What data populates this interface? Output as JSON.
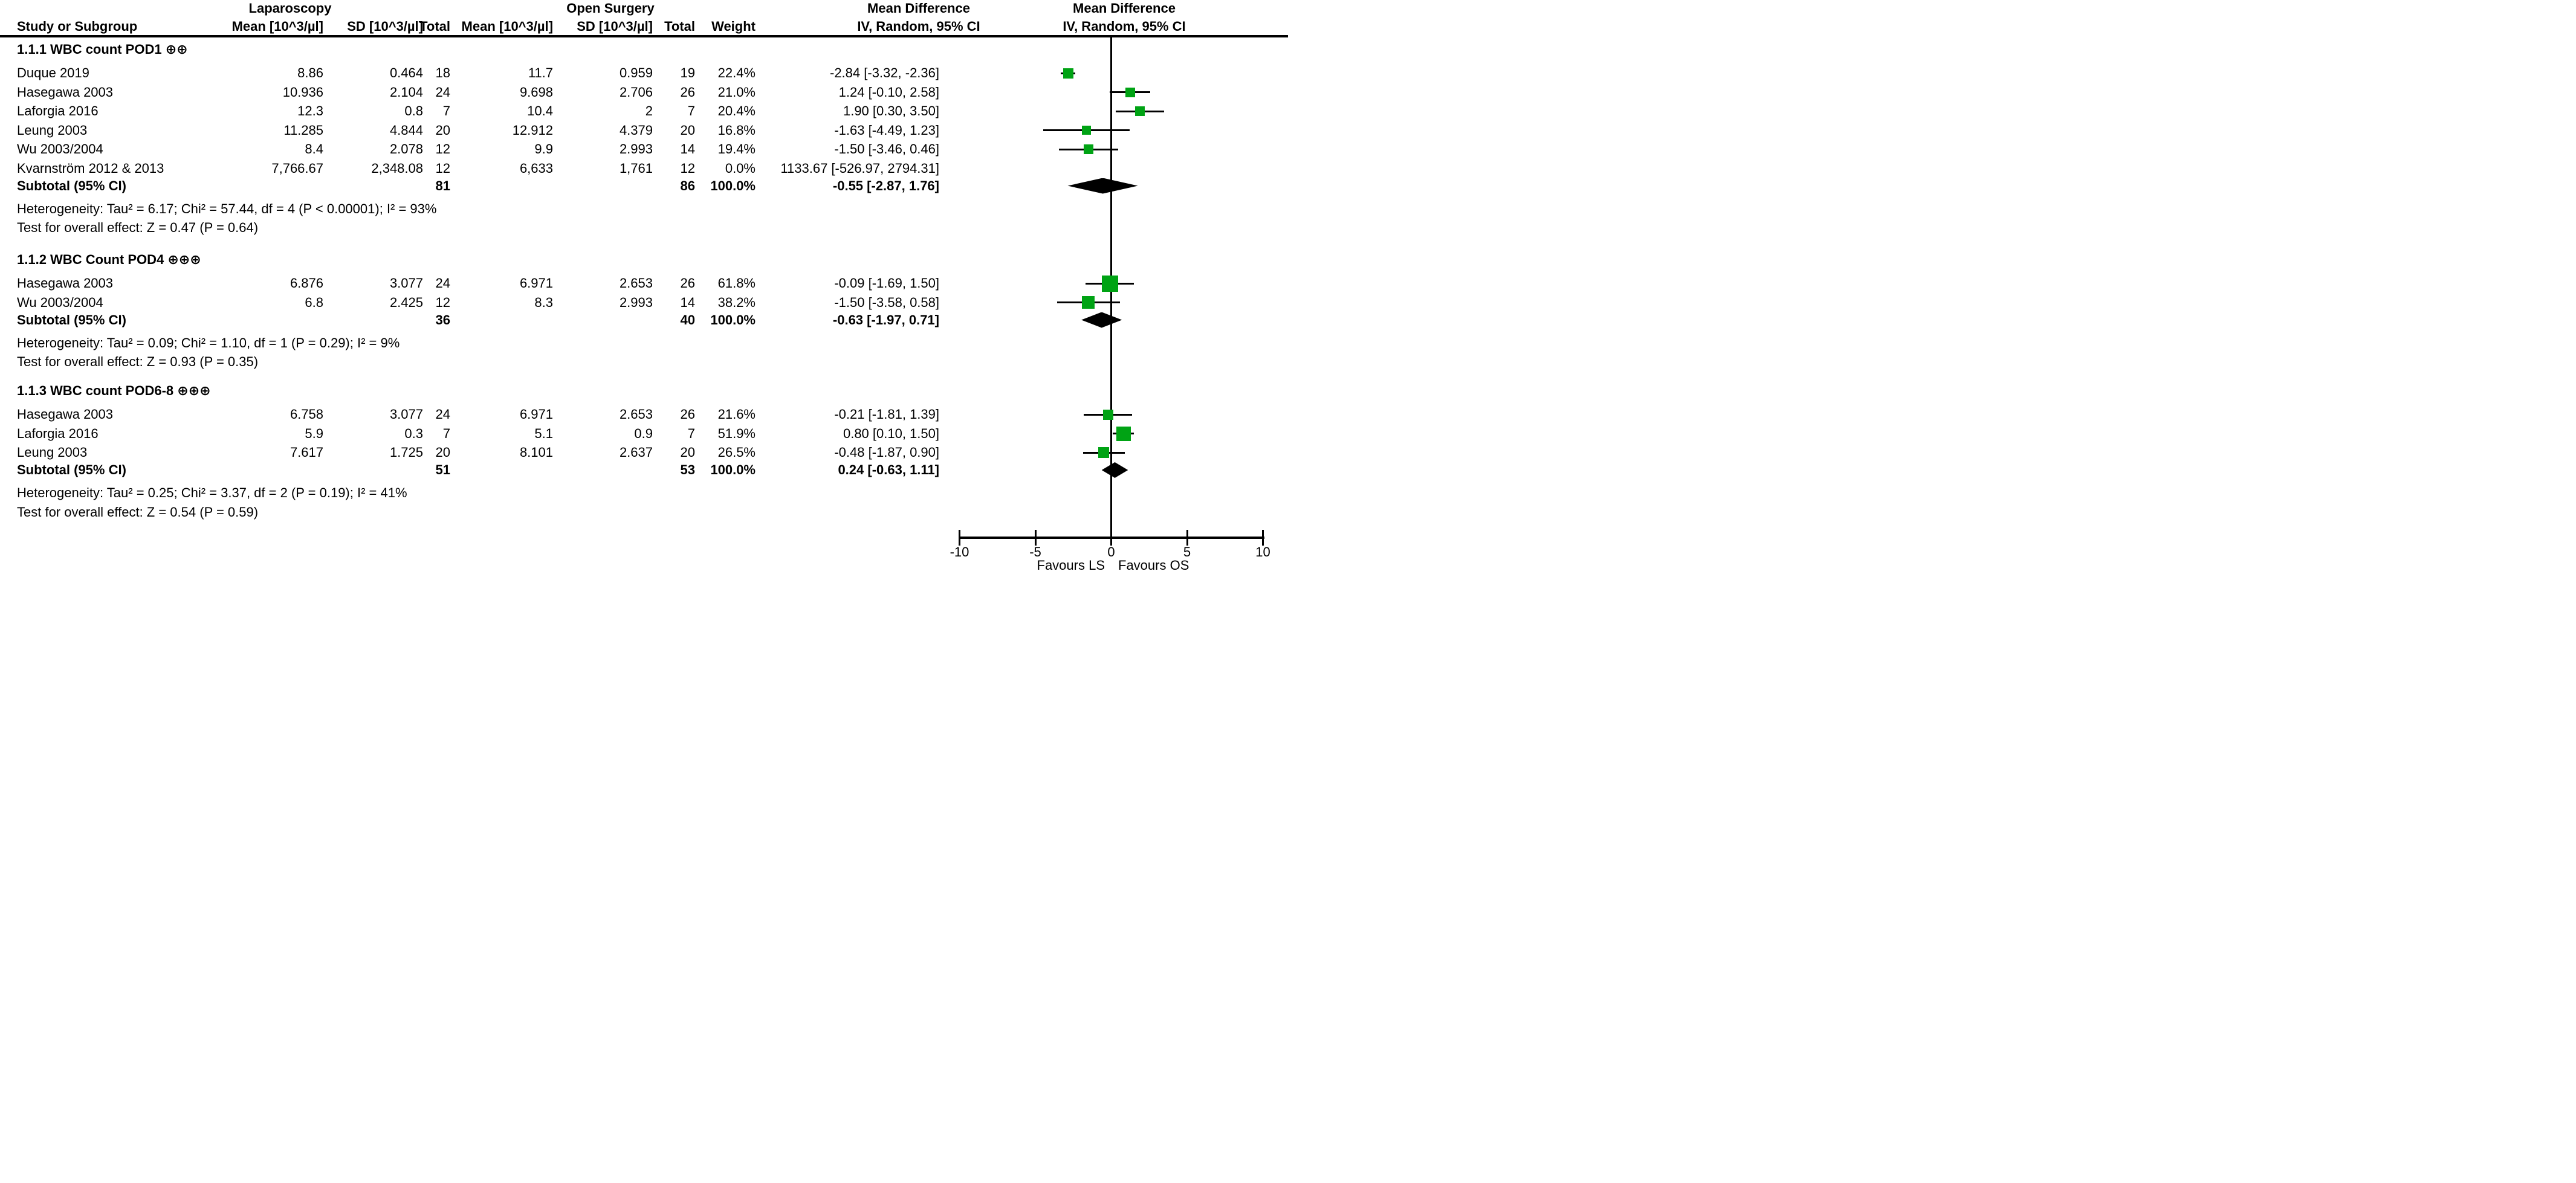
{
  "chart_data": {
    "type": "forest",
    "effect_measure": "Mean Difference",
    "model": "IV, Random, 95% CI",
    "groups": {
      "ls": "Laparoscopy",
      "os": "Open Surgery",
      "md": "Mean Difference",
      "md_graph": "Mean Difference"
    },
    "columns": {
      "study": "Study or Subgroup",
      "ls_mean": "Mean [10^3/µl]",
      "ls_sd": "SD [10^3/µl]",
      "ls_total": "Total",
      "os_mean": "Mean [10^3/µl]",
      "os_sd": "SD [10^3/µl]",
      "os_total": "Total",
      "weight": "Weight",
      "md": "IV, Random, 95% CI",
      "md_graph": "IV, Random, 95% CI"
    },
    "sections": [
      {
        "title": "1.1.1 WBC count POD1 ⊕⊕",
        "rows": [
          {
            "study": "Duque 2019",
            "ls_mean": "8.86",
            "ls_sd": "0.464",
            "ls_total": "18",
            "os_mean": "11.7",
            "os_sd": "0.959",
            "os_total": "19",
            "weight": "22.4%",
            "md_text": "-2.84 [-3.32, -2.36]",
            "est": -2.84,
            "lo": -3.32,
            "hi": -2.36,
            "weight_pct": 22.4,
            "plotted": true
          },
          {
            "study": "Hasegawa 2003",
            "ls_mean": "10.936",
            "ls_sd": "2.104",
            "ls_total": "24",
            "os_mean": "9.698",
            "os_sd": "2.706",
            "os_total": "26",
            "weight": "21.0%",
            "md_text": "1.24 [-0.10, 2.58]",
            "est": 1.24,
            "lo": -0.1,
            "hi": 2.58,
            "weight_pct": 21.0,
            "plotted": true
          },
          {
            "study": "Laforgia 2016",
            "ls_mean": "12.3",
            "ls_sd": "0.8",
            "ls_total": "7",
            "os_mean": "10.4",
            "os_sd": "2",
            "os_total": "7",
            "weight": "20.4%",
            "md_text": "1.90 [0.30, 3.50]",
            "est": 1.9,
            "lo": 0.3,
            "hi": 3.5,
            "weight_pct": 20.4,
            "plotted": true
          },
          {
            "study": "Leung 2003",
            "ls_mean": "11.285",
            "ls_sd": "4.844",
            "ls_total": "20",
            "os_mean": "12.912",
            "os_sd": "4.379",
            "os_total": "20",
            "weight": "16.8%",
            "md_text": "-1.63 [-4.49, 1.23]",
            "est": -1.63,
            "lo": -4.49,
            "hi": 1.23,
            "weight_pct": 16.8,
            "plotted": true
          },
          {
            "study": "Wu 2003/2004",
            "ls_mean": "8.4",
            "ls_sd": "2.078",
            "ls_total": "12",
            "os_mean": "9.9",
            "os_sd": "2.993",
            "os_total": "14",
            "weight": "19.4%",
            "md_text": "-1.50 [-3.46, 0.46]",
            "est": -1.5,
            "lo": -3.46,
            "hi": 0.46,
            "weight_pct": 19.4,
            "plotted": true
          },
          {
            "study": "Kvarnström 2012 & 2013",
            "ls_mean": "7,766.67",
            "ls_sd": "2,348.08",
            "ls_total": "12",
            "os_mean": "6,633",
            "os_sd": "1,761",
            "os_total": "12",
            "weight": "0.0%",
            "md_text": "1133.67 [-526.97, 2794.31]",
            "est": 1133.67,
            "lo": -526.97,
            "hi": 2794.31,
            "weight_pct": 0.0,
            "plotted": false
          }
        ],
        "subtotal": {
          "label": "Subtotal (95% CI)",
          "ls_total": "81",
          "os_total": "86",
          "weight": "100.0%",
          "md_text": "-0.55 [-2.87, 1.76]",
          "est": -0.55,
          "lo": -2.87,
          "hi": 1.76
        },
        "heterogeneity": "Heterogeneity: Tau² = 6.17; Chi² = 57.44, df = 4 (P < 0.00001); I² = 93%",
        "overall_effect": "Test for overall effect: Z = 0.47 (P = 0.64)"
      },
      {
        "title": "1.1.2 WBC Count POD4 ⊕⊕⊕",
        "rows": [
          {
            "study": "Hasegawa 2003",
            "ls_mean": "6.876",
            "ls_sd": "3.077",
            "ls_total": "24",
            "os_mean": "6.971",
            "os_sd": "2.653",
            "os_total": "26",
            "weight": "61.8%",
            "md_text": "-0.09 [-1.69, 1.50]",
            "est": -0.09,
            "lo": -1.69,
            "hi": 1.5,
            "weight_pct": 61.8,
            "plotted": true
          },
          {
            "study": "Wu 2003/2004",
            "ls_mean": "6.8",
            "ls_sd": "2.425",
            "ls_total": "12",
            "os_mean": "8.3",
            "os_sd": "2.993",
            "os_total": "14",
            "weight": "38.2%",
            "md_text": "-1.50 [-3.58, 0.58]",
            "est": -1.5,
            "lo": -3.58,
            "hi": 0.58,
            "weight_pct": 38.2,
            "plotted": true
          }
        ],
        "subtotal": {
          "label": "Subtotal (95% CI)",
          "ls_total": "36",
          "os_total": "40",
          "weight": "100.0%",
          "md_text": "-0.63 [-1.97, 0.71]",
          "est": -0.63,
          "lo": -1.97,
          "hi": 0.71
        },
        "heterogeneity": "Heterogeneity: Tau² = 0.09; Chi² = 1.10, df = 1 (P = 0.29); I² = 9%",
        "overall_effect": "Test for overall effect: Z = 0.93 (P = 0.35)"
      },
      {
        "title": "1.1.3 WBC count POD6-8 ⊕⊕⊕",
        "rows": [
          {
            "study": "Hasegawa 2003",
            "ls_mean": "6.758",
            "ls_sd": "3.077",
            "ls_total": "24",
            "os_mean": "6.971",
            "os_sd": "2.653",
            "os_total": "26",
            "weight": "21.6%",
            "md_text": "-0.21 [-1.81, 1.39]",
            "est": -0.21,
            "lo": -1.81,
            "hi": 1.39,
            "weight_pct": 21.6,
            "plotted": true
          },
          {
            "study": "Laforgia 2016",
            "ls_mean": "5.9",
            "ls_sd": "0.3",
            "ls_total": "7",
            "os_mean": "5.1",
            "os_sd": "0.9",
            "os_total": "7",
            "weight": "51.9%",
            "md_text": "0.80 [0.10, 1.50]",
            "est": 0.8,
            "lo": 0.1,
            "hi": 1.5,
            "weight_pct": 51.9,
            "plotted": true
          },
          {
            "study": "Leung 2003",
            "ls_mean": "7.617",
            "ls_sd": "1.725",
            "ls_total": "20",
            "os_mean": "8.101",
            "os_sd": "2.637",
            "os_total": "20",
            "weight": "26.5%",
            "md_text": "-0.48 [-1.87, 0.90]",
            "est": -0.48,
            "lo": -1.87,
            "hi": 0.9,
            "weight_pct": 26.5,
            "plotted": true
          }
        ],
        "subtotal": {
          "label": "Subtotal (95% CI)",
          "ls_total": "51",
          "os_total": "53",
          "weight": "100.0%",
          "md_text": "0.24 [-0.63, 1.11]",
          "est": 0.24,
          "lo": -0.63,
          "hi": 1.11
        },
        "heterogeneity": "Heterogeneity: Tau² = 0.25; Chi² = 3.37, df = 2 (P = 0.19); I² = 41%",
        "overall_effect": "Test for overall effect: Z = 0.54 (P = 0.59)"
      }
    ],
    "axis": {
      "xlim": [
        -10,
        10
      ],
      "ticks": [
        "-10",
        "-5",
        "0",
        "5",
        "10"
      ],
      "tick_values": [
        -10,
        -5,
        0,
        5,
        10
      ],
      "favours_left": "Favours LS",
      "favours_right": "Favours OS"
    },
    "colors": {
      "square": "#00A314",
      "diamond": "#000000",
      "line": "#000000"
    }
  }
}
